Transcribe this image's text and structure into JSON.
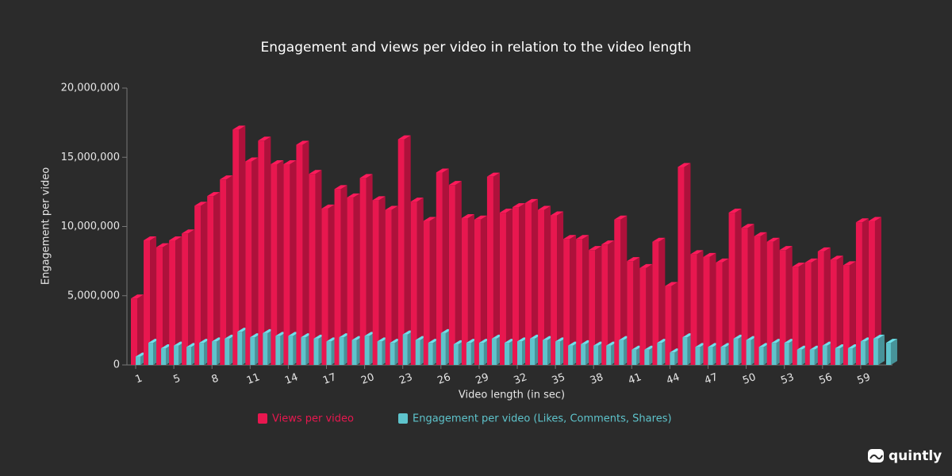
{
  "chart_data": {
    "type": "bar3d",
    "title": "Engagement and views per video in relation to the video length",
    "y_label": "Engagement per video",
    "x_label": "Video length (in sec)",
    "brand": "quintly",
    "categories": [
      "1",
      null,
      null,
      "5",
      null,
      null,
      "8",
      null,
      null,
      "11",
      null,
      null,
      "14",
      null,
      null,
      "17",
      null,
      null,
      "20",
      null,
      null,
      "23",
      null,
      null,
      "26",
      null,
      null,
      "29",
      null,
      null,
      "32",
      null,
      null,
      "35",
      null,
      null,
      "38",
      null,
      null,
      "41",
      null,
      null,
      "44",
      null,
      null,
      "47",
      null,
      null,
      "50",
      null,
      null,
      "53",
      null,
      null,
      "56",
      null,
      null,
      "59",
      null,
      null
    ],
    "series": [
      {
        "name": "Views per video",
        "color": "#e8174f",
        "values": [
          4800000,
          9000000,
          8500000,
          9000000,
          9500000,
          11500000,
          12200000,
          13400000,
          17000000,
          14700000,
          16200000,
          14500000,
          14500000,
          15900000,
          13800000,
          11300000,
          12700000,
          12100000,
          13500000,
          11900000,
          11200000,
          16300000,
          11800000,
          10400000,
          13900000,
          13000000,
          10600000,
          10500000,
          13600000,
          11000000,
          11400000,
          11700000,
          11200000,
          10800000,
          9100000,
          9100000,
          8300000,
          8700000,
          10500000,
          7500000,
          7000000,
          8900000,
          5700000,
          14300000,
          8000000,
          7800000,
          7400000,
          11000000,
          9900000,
          9300000,
          8900000,
          8300000,
          7100000,
          7400000,
          8200000,
          7600000,
          7200000,
          10300000,
          10400000,
          null
        ]
      },
      {
        "name": "Engagement per video (Likes, Comments, Shares)",
        "color": "#5ec4cc",
        "values": [
          600000,
          1600000,
          1200000,
          1400000,
          1300000,
          1600000,
          1700000,
          1900000,
          2400000,
          2000000,
          2300000,
          2100000,
          2100000,
          2000000,
          1900000,
          1700000,
          2000000,
          1800000,
          2100000,
          1700000,
          1600000,
          2200000,
          1800000,
          1600000,
          2300000,
          1500000,
          1600000,
          1600000,
          1900000,
          1600000,
          1700000,
          1900000,
          1800000,
          1700000,
          1400000,
          1500000,
          1400000,
          1400000,
          1800000,
          1100000,
          1100000,
          1600000,
          900000,
          2000000,
          1300000,
          1300000,
          1300000,
          1900000,
          1800000,
          1300000,
          1600000,
          1600000,
          1100000,
          1100000,
          1400000,
          1200000,
          1200000,
          1700000,
          1900000,
          1600000
        ]
      }
    ],
    "ylim": [
      0,
      20000000
    ],
    "yticks": [
      0,
      {
        "value": 5000000,
        "label": "5,000,000"
      },
      {
        "value": 10000000,
        "label": "10,000,000"
      },
      {
        "value": 15000000,
        "label": "15,000,000"
      },
      {
        "value": 20000000,
        "label": "20,000,000"
      }
    ],
    "legend": "bottom"
  }
}
